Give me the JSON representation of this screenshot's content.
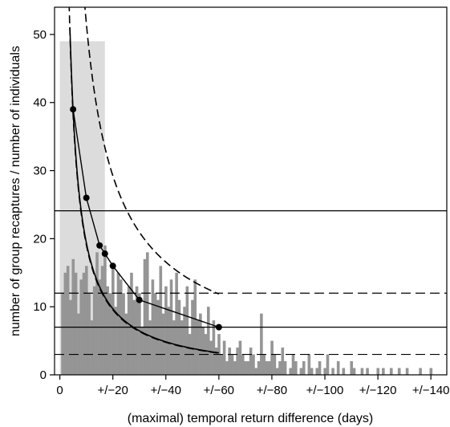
{
  "chart_data": {
    "type": "bar",
    "xlabel": "(maximal) temporal return difference (days)",
    "ylabel": "number of group recaptures / number of individuals",
    "xlim": [
      -2,
      146
    ],
    "ylim": [
      0,
      54
    ],
    "x_ticks": [
      {
        "value": 0,
        "label": "0"
      },
      {
        "value": 20,
        "label": "+/−20"
      },
      {
        "value": 40,
        "label": "+/−40"
      },
      {
        "value": 60,
        "label": "+/−60"
      },
      {
        "value": 80,
        "label": "+/−80"
      },
      {
        "value": 100,
        "label": "+/−100"
      },
      {
        "value": 120,
        "label": "+/−120"
      },
      {
        "value": 140,
        "label": "+/−140"
      }
    ],
    "y_ticks": [
      {
        "value": 0,
        "label": "0"
      },
      {
        "value": 10,
        "label": "10"
      },
      {
        "value": 20,
        "label": "20"
      },
      {
        "value": 30,
        "label": "30"
      },
      {
        "value": 40,
        "label": "40"
      },
      {
        "value": 50,
        "label": "50"
      }
    ],
    "shaded_region": {
      "x": [
        0,
        17
      ],
      "y": [
        0,
        49
      ]
    },
    "histogram": {
      "bin_width": 1,
      "x_start": 1,
      "values": [
        12,
        15,
        16,
        11,
        17,
        15,
        9,
        14,
        15,
        16,
        12,
        8,
        13,
        18,
        14,
        16,
        19,
        13,
        12,
        16,
        10,
        15,
        14,
        12,
        9,
        13,
        15,
        11,
        13,
        12,
        7,
        17,
        18,
        8,
        14,
        12,
        11,
        16,
        9,
        13,
        10,
        14,
        8,
        15,
        11,
        8,
        10,
        13,
        6,
        11,
        14,
        8,
        9,
        7,
        6,
        10,
        5,
        8,
        4,
        6,
        3,
        5,
        2,
        4,
        3,
        2,
        4,
        5,
        3,
        2,
        2,
        4,
        3,
        1,
        2,
        9,
        3,
        2,
        2,
        5,
        3,
        1,
        2,
        4,
        2,
        0,
        1,
        3,
        2,
        0,
        1,
        2,
        0,
        3,
        1,
        0,
        1,
        2,
        0,
        1,
        3,
        0,
        1,
        0,
        2,
        0,
        1,
        0,
        0,
        2,
        1,
        0,
        0,
        1,
        0,
        1,
        0,
        0,
        0,
        1,
        0,
        1,
        0,
        0,
        1,
        0,
        0,
        1,
        0,
        0,
        1,
        0,
        0,
        0,
        0,
        1,
        0,
        0,
        0,
        1
      ]
    },
    "series": [
      {
        "style": "solid",
        "markers": true,
        "x": [
          5,
          10,
          15,
          17,
          20,
          30,
          60
        ],
        "y": [
          39,
          26,
          19,
          17.8,
          16,
          11,
          7
        ]
      }
    ],
    "fitted_curve": {
      "x_range": [
        3.8,
        60
      ],
      "coef": 194,
      "power": -1
    },
    "envelope_upper": {
      "x_range": [
        3.7,
        60
      ],
      "coef": 341,
      "power": -0.82
    },
    "envelope_lower": {
      "x_range": [
        3.5,
        60
      ],
      "coef": 191,
      "power": -1
    },
    "hlines": [
      {
        "y": 24.1,
        "style": "solid"
      },
      {
        "y": 12,
        "style": "dashed"
      },
      {
        "y": 7,
        "style": "solid"
      },
      {
        "y": 3,
        "style": "dashed"
      }
    ],
    "grid": false,
    "legend": false
  }
}
